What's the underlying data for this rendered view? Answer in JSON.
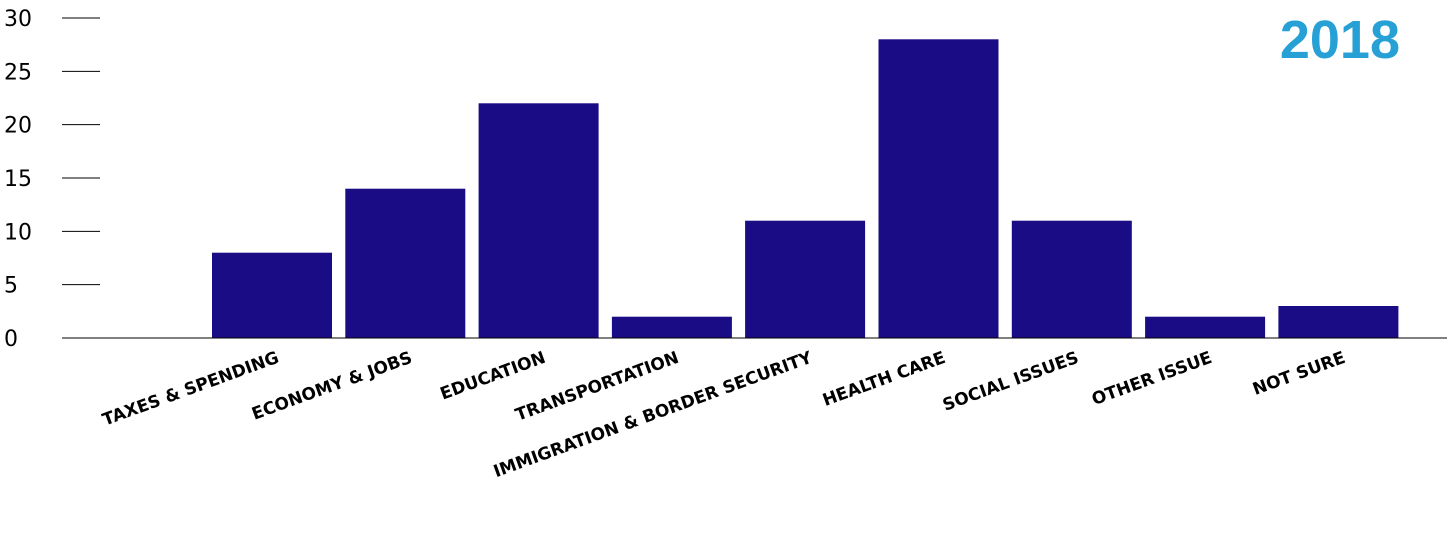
{
  "chart_data": {
    "type": "bar",
    "title": "2018",
    "xlabel": "",
    "ylabel": "",
    "ylim": [
      0,
      30
    ],
    "yticks": [
      0,
      5,
      10,
      15,
      20,
      25,
      30
    ],
    "grid": false,
    "categories": [
      "",
      "TAXES & SPENDING",
      "ECONOMY & JOBS",
      "EDUCATION",
      "TRANSPORTATION",
      "IMMIGRATION & BORDER SECURITY",
      "HEALTH CARE",
      "SOCIAL ISSUES",
      "OTHER ISSUE",
      "NOT SURE"
    ],
    "values": [
      0,
      8,
      14,
      22,
      2,
      11,
      28,
      11,
      2,
      3
    ],
    "bar_color": "#1a0c85",
    "title_color": "#27a0d6"
  }
}
